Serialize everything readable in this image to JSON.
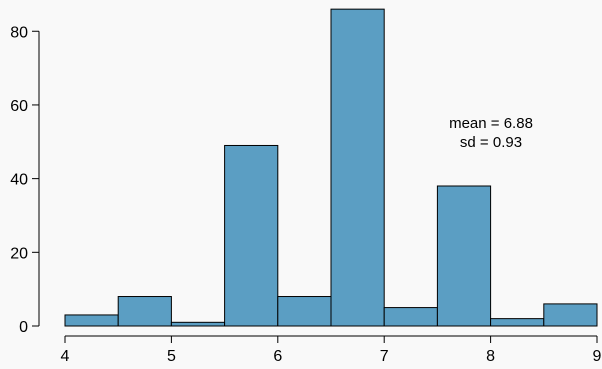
{
  "chart_data": {
    "type": "bar",
    "style": "histogram",
    "bin_edges": [
      4,
      4.5,
      5,
      5.5,
      6,
      6.5,
      7,
      7.5,
      8,
      8.5,
      9
    ],
    "values": [
      3,
      8,
      1,
      49,
      8,
      86,
      5,
      38,
      2,
      6
    ],
    "bar_color": "#5b9ec3",
    "title": "",
    "xlabel": "",
    "ylabel": "",
    "xlim": [
      4,
      9
    ],
    "ylim": [
      0,
      86
    ],
    "x_ticks": [
      4,
      5,
      6,
      7,
      8,
      9
    ],
    "y_ticks": [
      0,
      20,
      40,
      60,
      80
    ],
    "grid": false,
    "annotations": {
      "mean": "mean =  6.88",
      "sd": "sd =  0.93"
    }
  }
}
